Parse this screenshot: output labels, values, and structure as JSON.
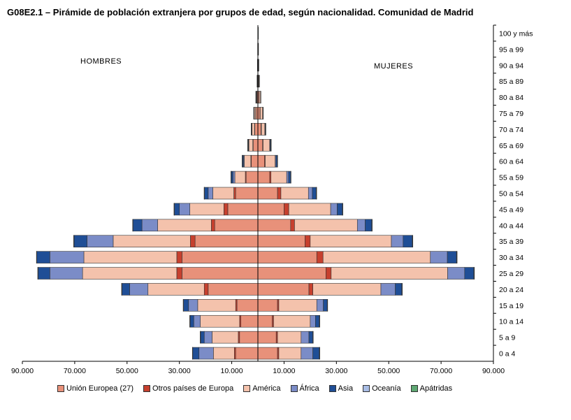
{
  "chart_data": {
    "type": "bar",
    "title": "G08E2.1 – Pirámide de población extranjera por grupos de edad, según nacionalidad. Comunidad de Madrid",
    "left_label": "HOMBRES",
    "right_label": "MUJERES",
    "xlim": [
      -90000,
      90000
    ],
    "x_ticks": [
      -90000,
      -70000,
      -50000,
      -30000,
      -10000,
      10000,
      30000,
      50000,
      70000,
      90000
    ],
    "x_tick_labels": [
      "90.000",
      "70.000",
      "50.000",
      "30.000",
      "10.000",
      "10.000",
      "30.000",
      "50.000",
      "70.000",
      "90.000"
    ],
    "categories": [
      "0 a 4",
      "5 a 9",
      "10 a 14",
      "15 a 19",
      "20 a 24",
      "25 a 29",
      "30 a 34",
      "35 a 39",
      "40 a 44",
      "45 a 49",
      "50 a 54",
      "55 a 59",
      "60 a 64",
      "65 a 69",
      "70 a 74",
      "75 a 79",
      "80 a 84",
      "85 a 89",
      "90 a 94",
      "95 a 99",
      "100 y más"
    ],
    "series": [
      {
        "name": "Unión Europea (27)",
        "color": "#e8917a",
        "hombres": [
          8500,
          7000,
          6500,
          8000,
          19000,
          29000,
          29000,
          24000,
          16500,
          11500,
          8500,
          4500,
          2500,
          1800,
          1200,
          800,
          400,
          200,
          100,
          50,
          30
        ],
        "mujeres": [
          7500,
          7000,
          5500,
          7500,
          19500,
          26000,
          22500,
          18000,
          12500,
          10000,
          7500,
          4500,
          2500,
          1800,
          1200,
          800,
          450,
          250,
          120,
          50,
          30
        ]
      },
      {
        "name": "Otros países de Europa",
        "color": "#c6402e",
        "hombres": [
          500,
          500,
          500,
          500,
          1500,
          2000,
          2000,
          1800,
          1300,
          1500,
          700,
          300,
          200,
          150,
          100,
          50,
          30,
          10,
          5,
          2,
          1
        ],
        "mujeres": [
          500,
          500,
          500,
          500,
          1500,
          2000,
          2400,
          2000,
          1500,
          1800,
          1300,
          500,
          300,
          200,
          150,
          100,
          50,
          20,
          10,
          5,
          2
        ]
      },
      {
        "name": "América",
        "color": "#f4c2ac",
        "hombres": [
          8000,
          10000,
          15000,
          14500,
          21500,
          36000,
          35500,
          29500,
          20500,
          13000,
          8000,
          4000,
          2500,
          1500,
          1000,
          600,
          300,
          100,
          40,
          15,
          5
        ],
        "mujeres": [
          8500,
          9000,
          14000,
          14500,
          26000,
          44500,
          41000,
          31000,
          24000,
          16000,
          10500,
          6000,
          3800,
          2500,
          1300,
          900,
          500,
          200,
          80,
          30,
          10
        ]
      },
      {
        "name": "África",
        "color": "#7b8cc7",
        "hombres": [
          5500,
          3000,
          2500,
          3500,
          7000,
          12500,
          13000,
          10000,
          6000,
          4000,
          1800,
          700,
          300,
          150,
          80,
          40,
          20,
          5,
          2,
          1,
          0
        ],
        "mujeres": [
          4500,
          3000,
          2000,
          2500,
          5500,
          6500,
          6500,
          4500,
          3000,
          2500,
          1500,
          700,
          300,
          150,
          80,
          40,
          20,
          5,
          2,
          1,
          0
        ]
      },
      {
        "name": "Asia",
        "color": "#1f4e96",
        "hombres": [
          2500,
          1500,
          1500,
          2000,
          3000,
          4500,
          5000,
          5000,
          3500,
          2000,
          1500,
          800,
          500,
          300,
          200,
          100,
          50,
          20,
          5,
          2,
          1
        ],
        "mujeres": [
          2500,
          1500,
          1500,
          1500,
          2500,
          3500,
          3500,
          3500,
          2500,
          2000,
          1500,
          800,
          500,
          300,
          200,
          100,
          50,
          20,
          5,
          2,
          1
        ]
      },
      {
        "name": "Oceanía",
        "color": "#a9bde5",
        "hombres": [
          30,
          30,
          30,
          30,
          60,
          100,
          100,
          80,
          60,
          40,
          20,
          10,
          5,
          3,
          2,
          1,
          0,
          0,
          0,
          0,
          0
        ],
        "mujeres": [
          30,
          30,
          30,
          30,
          60,
          100,
          100,
          80,
          60,
          40,
          20,
          10,
          5,
          3,
          2,
          1,
          0,
          0,
          0,
          0,
          0
        ]
      },
      {
        "name": "Apátridas",
        "color": "#5fa873",
        "hombres": [
          5,
          5,
          5,
          5,
          10,
          10,
          10,
          10,
          5,
          5,
          3,
          2,
          1,
          1,
          0,
          0,
          0,
          0,
          0,
          0,
          0
        ],
        "mujeres": [
          5,
          5,
          5,
          5,
          10,
          10,
          10,
          10,
          5,
          5,
          3,
          2,
          1,
          1,
          0,
          0,
          0,
          0,
          0,
          0,
          0
        ]
      }
    ]
  }
}
